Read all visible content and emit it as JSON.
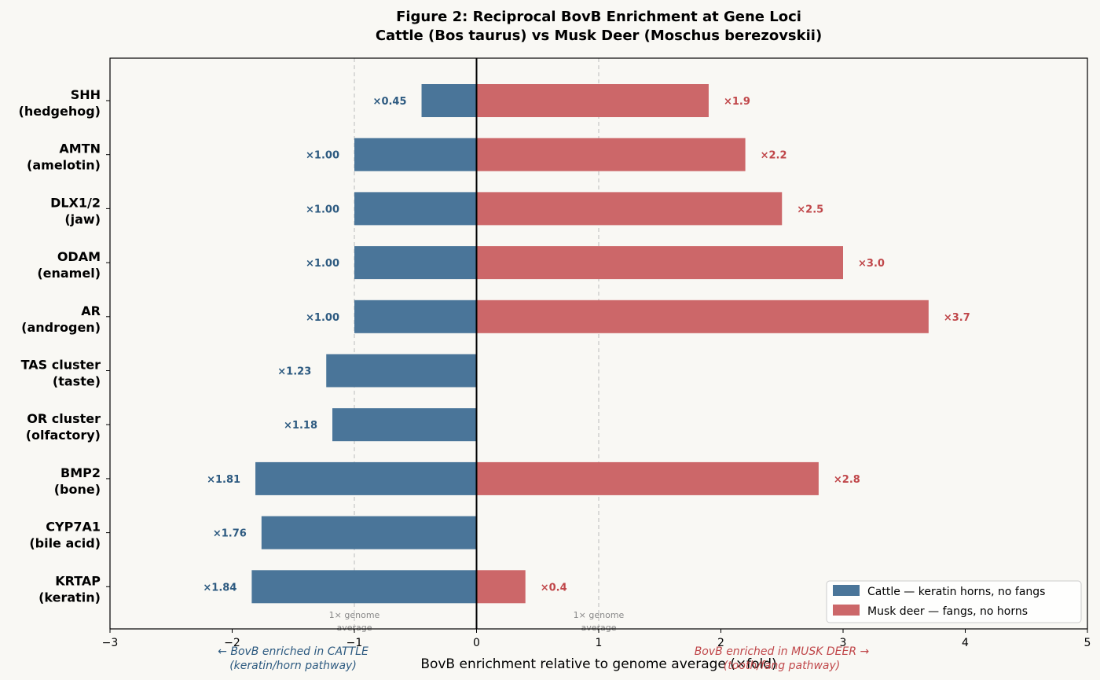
{
  "chart_data": {
    "type": "bar",
    "orientation": "horizontal-diverging",
    "title_line1": "Figure 2: Reciprocal BovB Enrichment at Gene Loci",
    "title_line2": "Cattle (Bos taurus) vs Musk Deer (Moschus berezovskii)",
    "xlabel": "BovB enrichment relative to genome average (×fold)",
    "xlim": [
      -3,
      5
    ],
    "xticks": [
      {
        "value": -3,
        "label": "−3"
      },
      {
        "value": -2,
        "label": "−2"
      },
      {
        "value": -1,
        "label": "−1"
      },
      {
        "value": 0,
        "label": "0"
      },
      {
        "value": 1,
        "label": "1"
      },
      {
        "value": 2,
        "label": "2"
      },
      {
        "value": 3,
        "label": "3"
      },
      {
        "value": 4,
        "label": "4"
      },
      {
        "value": 5,
        "label": "5"
      }
    ],
    "reference_lines": [
      {
        "value": -1,
        "label_line1": "1× genome",
        "label_line2": "average"
      },
      {
        "value": 1,
        "label_line1": "1× genome",
        "label_line2": "average"
      }
    ],
    "categories": [
      {
        "name": "SHH",
        "sub": "(hedgehog)"
      },
      {
        "name": "AMTN",
        "sub": "(amelotin)"
      },
      {
        "name": "DLX1/2",
        "sub": "(jaw)"
      },
      {
        "name": "ODAM",
        "sub": "(enamel)"
      },
      {
        "name": "AR",
        "sub": "(androgen)"
      },
      {
        "name": "TAS cluster",
        "sub": "(taste)"
      },
      {
        "name": "OR cluster",
        "sub": "(olfactory)"
      },
      {
        "name": "BMP2",
        "sub": "(bone)"
      },
      {
        "name": "CYP7A1",
        "sub": "(bile acid)"
      },
      {
        "name": "KRTAP",
        "sub": "(keratin)"
      }
    ],
    "series": [
      {
        "name": "Cattle — keratin horns, no fangs",
        "color": "#4a7599",
        "label_color": "#2d5a80",
        "direction": "left",
        "values": [
          0.45,
          1.0,
          1.0,
          1.0,
          1.0,
          1.23,
          1.18,
          1.81,
          1.76,
          1.84
        ],
        "labels": [
          "×0.45",
          "×1.00",
          "×1.00",
          "×1.00",
          "×1.00",
          "×1.23",
          "×1.18",
          "×1.81",
          "×1.76",
          "×1.84"
        ]
      },
      {
        "name": "Musk deer — fangs, no horns",
        "color": "#cc6769",
        "label_color": "#c0474a",
        "direction": "right",
        "values": [
          1.9,
          2.2,
          2.5,
          3.0,
          3.7,
          null,
          null,
          2.8,
          null,
          0.4
        ],
        "labels": [
          "×1.9",
          "×2.2",
          "×2.5",
          "×3.0",
          "×3.7",
          null,
          null,
          "×2.8",
          null,
          "×0.4"
        ]
      }
    ],
    "left_annotation": {
      "line1": "← BovB enriched in CATTLE",
      "line2": "(keratin/horn pathway)"
    },
    "right_annotation": {
      "line1": "BovB enriched in MUSK DEER →",
      "line2": "(tooth/fang pathway)"
    },
    "legend_position": "bottom-right"
  }
}
